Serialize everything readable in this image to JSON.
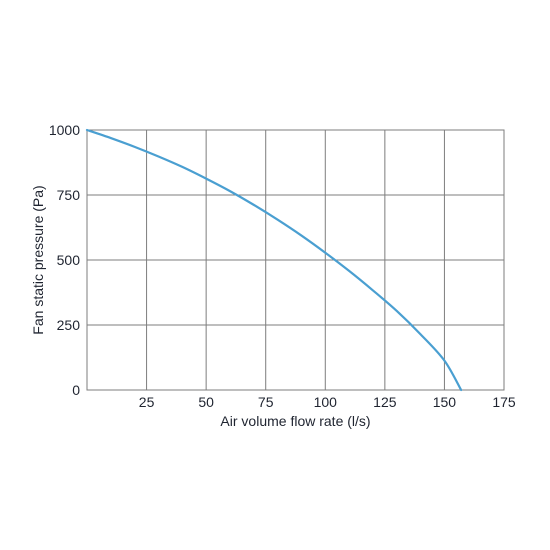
{
  "chart_data": {
    "type": "line",
    "title": "",
    "xlabel": "Air volume flow rate (l/s)",
    "ylabel": "Fan static pressure (Pa)",
    "xlim": [
      0,
      175
    ],
    "ylim": [
      0,
      1000
    ],
    "x_ticks": [
      25,
      50,
      75,
      100,
      125,
      150,
      175
    ],
    "x_tick_labels": [
      "25",
      "50",
      "75",
      "100",
      "125",
      "150",
      "175"
    ],
    "y_ticks": [
      0,
      250,
      500,
      750,
      1000
    ],
    "y_tick_labels": [
      "0",
      "250",
      "500",
      "750",
      "1000"
    ],
    "grid": true,
    "legend": "none",
    "series": [
      {
        "color": "#4a9fd1",
        "x": [
          0,
          10,
          20,
          30,
          40,
          50,
          60,
          70,
          80,
          90,
          100,
          110,
          120,
          130,
          140,
          150,
          157
        ],
        "y": [
          1000,
          969,
          935,
          898,
          858,
          813,
          765,
          712,
          655,
          594,
          528,
          458,
          383,
          304,
          214,
          113,
          0
        ]
      }
    ]
  }
}
